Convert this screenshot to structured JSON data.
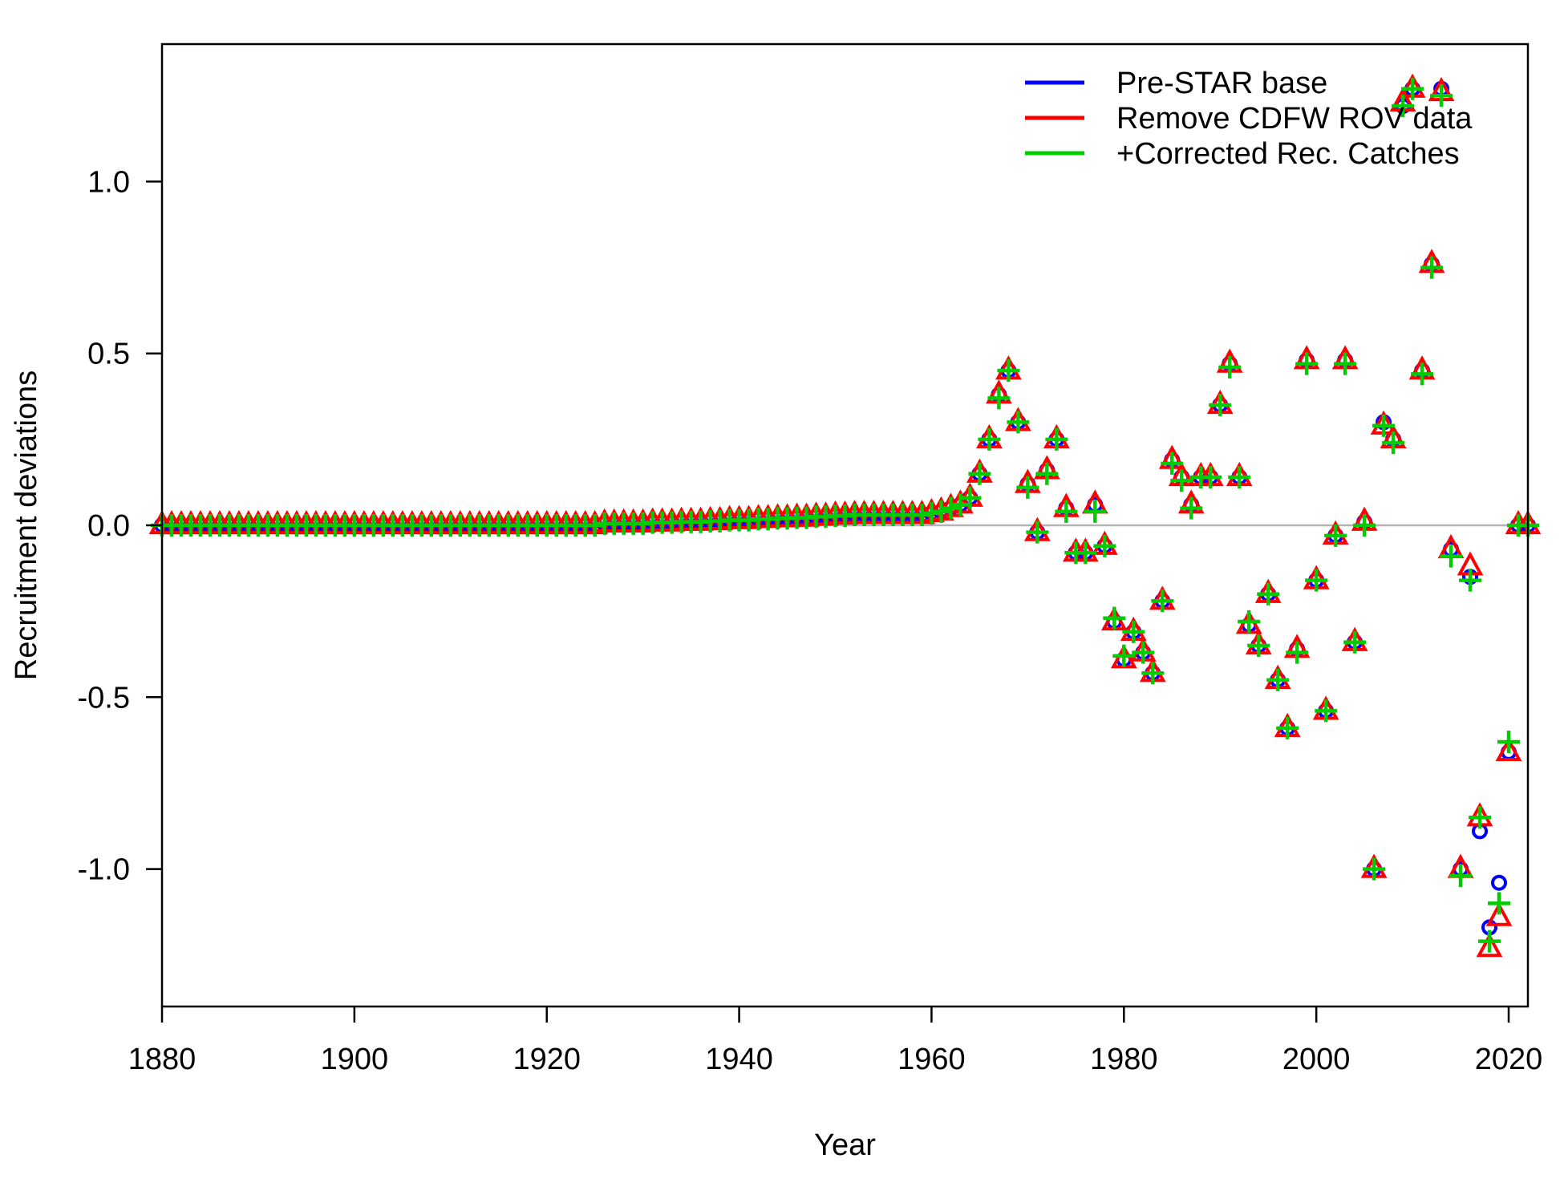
{
  "chart_data": {
    "type": "scatter",
    "title": "",
    "xlabel": "Year",
    "ylabel": "Recruitment deviations",
    "xlim": [
      1880,
      2022
    ],
    "ylim": [
      -1.4,
      1.4
    ],
    "xticks": [
      1880,
      1900,
      1920,
      1940,
      1960,
      1980,
      2000,
      2020
    ],
    "xtick_labels": [
      "1880",
      "1900",
      "1920",
      "1940",
      "1960",
      "1980",
      "2000",
      "2020"
    ],
    "yticks": [
      -1.0,
      -0.5,
      0.0,
      0.5,
      1.0
    ],
    "ytick_labels": [
      "-1.0",
      "-0.5",
      "0.0",
      "0.5",
      "1.0"
    ],
    "reference_line": {
      "y": 0.0,
      "color": "#b3b3b3"
    },
    "legend_position": "top-right",
    "legend": [
      {
        "label": "Pre-STAR base",
        "color": "#0000ff",
        "marker": "circle"
      },
      {
        "label": "Remove CDFW ROV data",
        "color": "#ff0000",
        "marker": "triangle"
      },
      {
        "label": "+Corrected Rec. Catches",
        "color": "#00cc00",
        "marker": "plus"
      }
    ],
    "x": [
      1880,
      1881,
      1882,
      1883,
      1884,
      1885,
      1886,
      1887,
      1888,
      1889,
      1890,
      1891,
      1892,
      1893,
      1894,
      1895,
      1896,
      1897,
      1898,
      1899,
      1900,
      1901,
      1902,
      1903,
      1904,
      1905,
      1906,
      1907,
      1908,
      1909,
      1910,
      1911,
      1912,
      1913,
      1914,
      1915,
      1916,
      1917,
      1918,
      1919,
      1920,
      1921,
      1922,
      1923,
      1924,
      1925,
      1926,
      1927,
      1928,
      1929,
      1930,
      1931,
      1932,
      1933,
      1934,
      1935,
      1936,
      1937,
      1938,
      1939,
      1940,
      1941,
      1942,
      1943,
      1944,
      1945,
      1946,
      1947,
      1948,
      1949,
      1950,
      1951,
      1952,
      1953,
      1954,
      1955,
      1956,
      1957,
      1958,
      1959,
      1960,
      1961,
      1962,
      1963,
      1964,
      1965,
      1966,
      1967,
      1968,
      1969,
      1970,
      1971,
      1972,
      1973,
      1974,
      1975,
      1976,
      1977,
      1978,
      1979,
      1980,
      1981,
      1982,
      1983,
      1984,
      1985,
      1986,
      1987,
      1988,
      1989,
      1990,
      1991,
      1992,
      1993,
      1994,
      1995,
      1996,
      1997,
      1998,
      1999,
      2000,
      2001,
      2002,
      2003,
      2004,
      2005,
      2006,
      2007,
      2008,
      2009,
      2010,
      2011,
      2012,
      2013,
      2014,
      2015,
      2016,
      2017,
      2018,
      2019,
      2020,
      2021,
      2022
    ],
    "series": [
      {
        "name": "Pre-STAR base",
        "color": "#0000ff",
        "marker": "circle",
        "values": [
          0.0,
          0.0,
          0.0,
          0.0,
          0.0,
          0.0,
          0.0,
          0.0,
          0.0,
          0.0,
          0.0,
          0.0,
          0.0,
          0.0,
          0.0,
          0.0,
          0.0,
          0.0,
          0.0,
          0.0,
          0.0,
          0.0,
          0.0,
          0.0,
          0.0,
          0.0,
          0.0,
          0.0,
          0.0,
          0.0,
          0.0,
          0.0,
          0.0,
          0.0,
          0.0,
          0.0,
          0.0,
          0.0,
          0.0,
          0.0,
          0.0,
          0.0,
          0.0,
          0.0,
          0.0,
          0.0,
          0.005,
          0.005,
          0.005,
          0.005,
          0.005,
          0.008,
          0.008,
          0.008,
          0.01,
          0.01,
          0.01,
          0.012,
          0.012,
          0.015,
          0.015,
          0.015,
          0.018,
          0.018,
          0.02,
          0.02,
          0.022,
          0.022,
          0.025,
          0.025,
          0.028,
          0.028,
          0.03,
          0.03,
          0.03,
          0.03,
          0.03,
          0.03,
          0.03,
          0.03,
          0.035,
          0.04,
          0.05,
          0.06,
          0.08,
          0.15,
          0.25,
          0.38,
          0.45,
          0.3,
          0.12,
          -0.02,
          0.16,
          0.25,
          0.05,
          -0.08,
          -0.08,
          0.06,
          -0.06,
          -0.28,
          -0.39,
          -0.31,
          -0.37,
          -0.43,
          -0.22,
          0.19,
          0.14,
          0.06,
          0.14,
          0.14,
          0.35,
          0.47,
          0.14,
          -0.29,
          -0.35,
          -0.2,
          -0.45,
          -0.59,
          -0.36,
          0.48,
          -0.16,
          -0.54,
          -0.03,
          0.48,
          -0.34,
          0.01,
          -1.0,
          0.3,
          0.25,
          1.22,
          1.27,
          0.45,
          0.76,
          1.27,
          -0.07,
          -1.0,
          -0.15,
          -0.89,
          -1.17,
          -1.04,
          -0.66,
          0.0,
          0.0
        ]
      },
      {
        "name": "Remove CDFW ROV data",
        "color": "#ff0000",
        "marker": "triangle",
        "values": [
          0.0,
          0.0,
          0.0,
          0.0,
          0.0,
          0.0,
          0.0,
          0.0,
          0.0,
          0.0,
          0.0,
          0.0,
          0.0,
          0.0,
          0.0,
          0.0,
          0.0,
          0.0,
          0.0,
          0.0,
          0.0,
          0.0,
          0.0,
          0.0,
          0.0,
          0.0,
          0.0,
          0.0,
          0.0,
          0.0,
          0.0,
          0.0,
          0.0,
          0.0,
          0.0,
          0.0,
          0.0,
          0.0,
          0.0,
          0.0,
          0.0,
          0.0,
          0.0,
          0.0,
          0.0,
          0.0,
          0.005,
          0.005,
          0.005,
          0.005,
          0.005,
          0.008,
          0.008,
          0.008,
          0.01,
          0.01,
          0.01,
          0.012,
          0.012,
          0.015,
          0.015,
          0.015,
          0.018,
          0.018,
          0.02,
          0.02,
          0.022,
          0.022,
          0.025,
          0.025,
          0.028,
          0.028,
          0.03,
          0.03,
          0.03,
          0.03,
          0.03,
          0.03,
          0.03,
          0.03,
          0.035,
          0.04,
          0.05,
          0.06,
          0.08,
          0.15,
          0.25,
          0.38,
          0.45,
          0.3,
          0.12,
          -0.02,
          0.16,
          0.25,
          0.05,
          -0.08,
          -0.08,
          0.06,
          -0.06,
          -0.28,
          -0.39,
          -0.31,
          -0.37,
          -0.43,
          -0.22,
          0.19,
          0.14,
          0.06,
          0.14,
          0.14,
          0.35,
          0.47,
          0.14,
          -0.29,
          -0.35,
          -0.2,
          -0.45,
          -0.59,
          -0.36,
          0.48,
          -0.16,
          -0.54,
          -0.03,
          0.48,
          -0.34,
          0.01,
          -1.0,
          0.29,
          0.25,
          1.23,
          1.27,
          0.45,
          0.76,
          1.26,
          -0.07,
          -1.0,
          -0.12,
          -0.85,
          -1.23,
          -1.14,
          -0.66,
          0.0,
          0.0
        ]
      },
      {
        "name": "+Corrected Rec. Catches",
        "color": "#00cc00",
        "marker": "plus",
        "values": [
          0.0,
          0.0,
          0.0,
          0.0,
          0.0,
          0.0,
          0.0,
          0.0,
          0.0,
          0.0,
          0.0,
          0.0,
          0.0,
          0.0,
          0.0,
          0.0,
          0.0,
          0.0,
          0.0,
          0.0,
          0.0,
          0.0,
          0.0,
          0.0,
          0.0,
          0.0,
          0.0,
          0.0,
          0.0,
          0.0,
          0.0,
          0.0,
          0.0,
          0.0,
          0.0,
          0.0,
          0.0,
          0.0,
          0.0,
          0.0,
          0.0,
          0.0,
          0.0,
          0.0,
          0.0,
          0.0,
          0.005,
          0.005,
          0.005,
          0.005,
          0.005,
          0.008,
          0.008,
          0.008,
          0.01,
          0.01,
          0.01,
          0.012,
          0.012,
          0.015,
          0.015,
          0.015,
          0.018,
          0.018,
          0.02,
          0.02,
          0.022,
          0.022,
          0.025,
          0.025,
          0.028,
          0.028,
          0.03,
          0.03,
          0.03,
          0.03,
          0.03,
          0.03,
          0.03,
          0.03,
          0.035,
          0.04,
          0.05,
          0.06,
          0.08,
          0.15,
          0.25,
          0.37,
          0.45,
          0.3,
          0.11,
          -0.02,
          0.15,
          0.25,
          0.04,
          -0.08,
          -0.08,
          0.04,
          -0.06,
          -0.27,
          -0.38,
          -0.31,
          -0.37,
          -0.43,
          -0.22,
          0.18,
          0.13,
          0.05,
          0.14,
          0.14,
          0.35,
          0.46,
          0.14,
          -0.28,
          -0.35,
          -0.2,
          -0.45,
          -0.59,
          -0.37,
          0.47,
          -0.16,
          -0.54,
          -0.03,
          0.47,
          -0.34,
          0.0,
          -1.0,
          0.29,
          0.24,
          1.22,
          1.27,
          0.44,
          0.75,
          1.25,
          -0.09,
          -1.02,
          -0.16,
          -0.85,
          -1.21,
          -1.1,
          -0.63,
          0.0,
          0.0
        ]
      }
    ]
  }
}
